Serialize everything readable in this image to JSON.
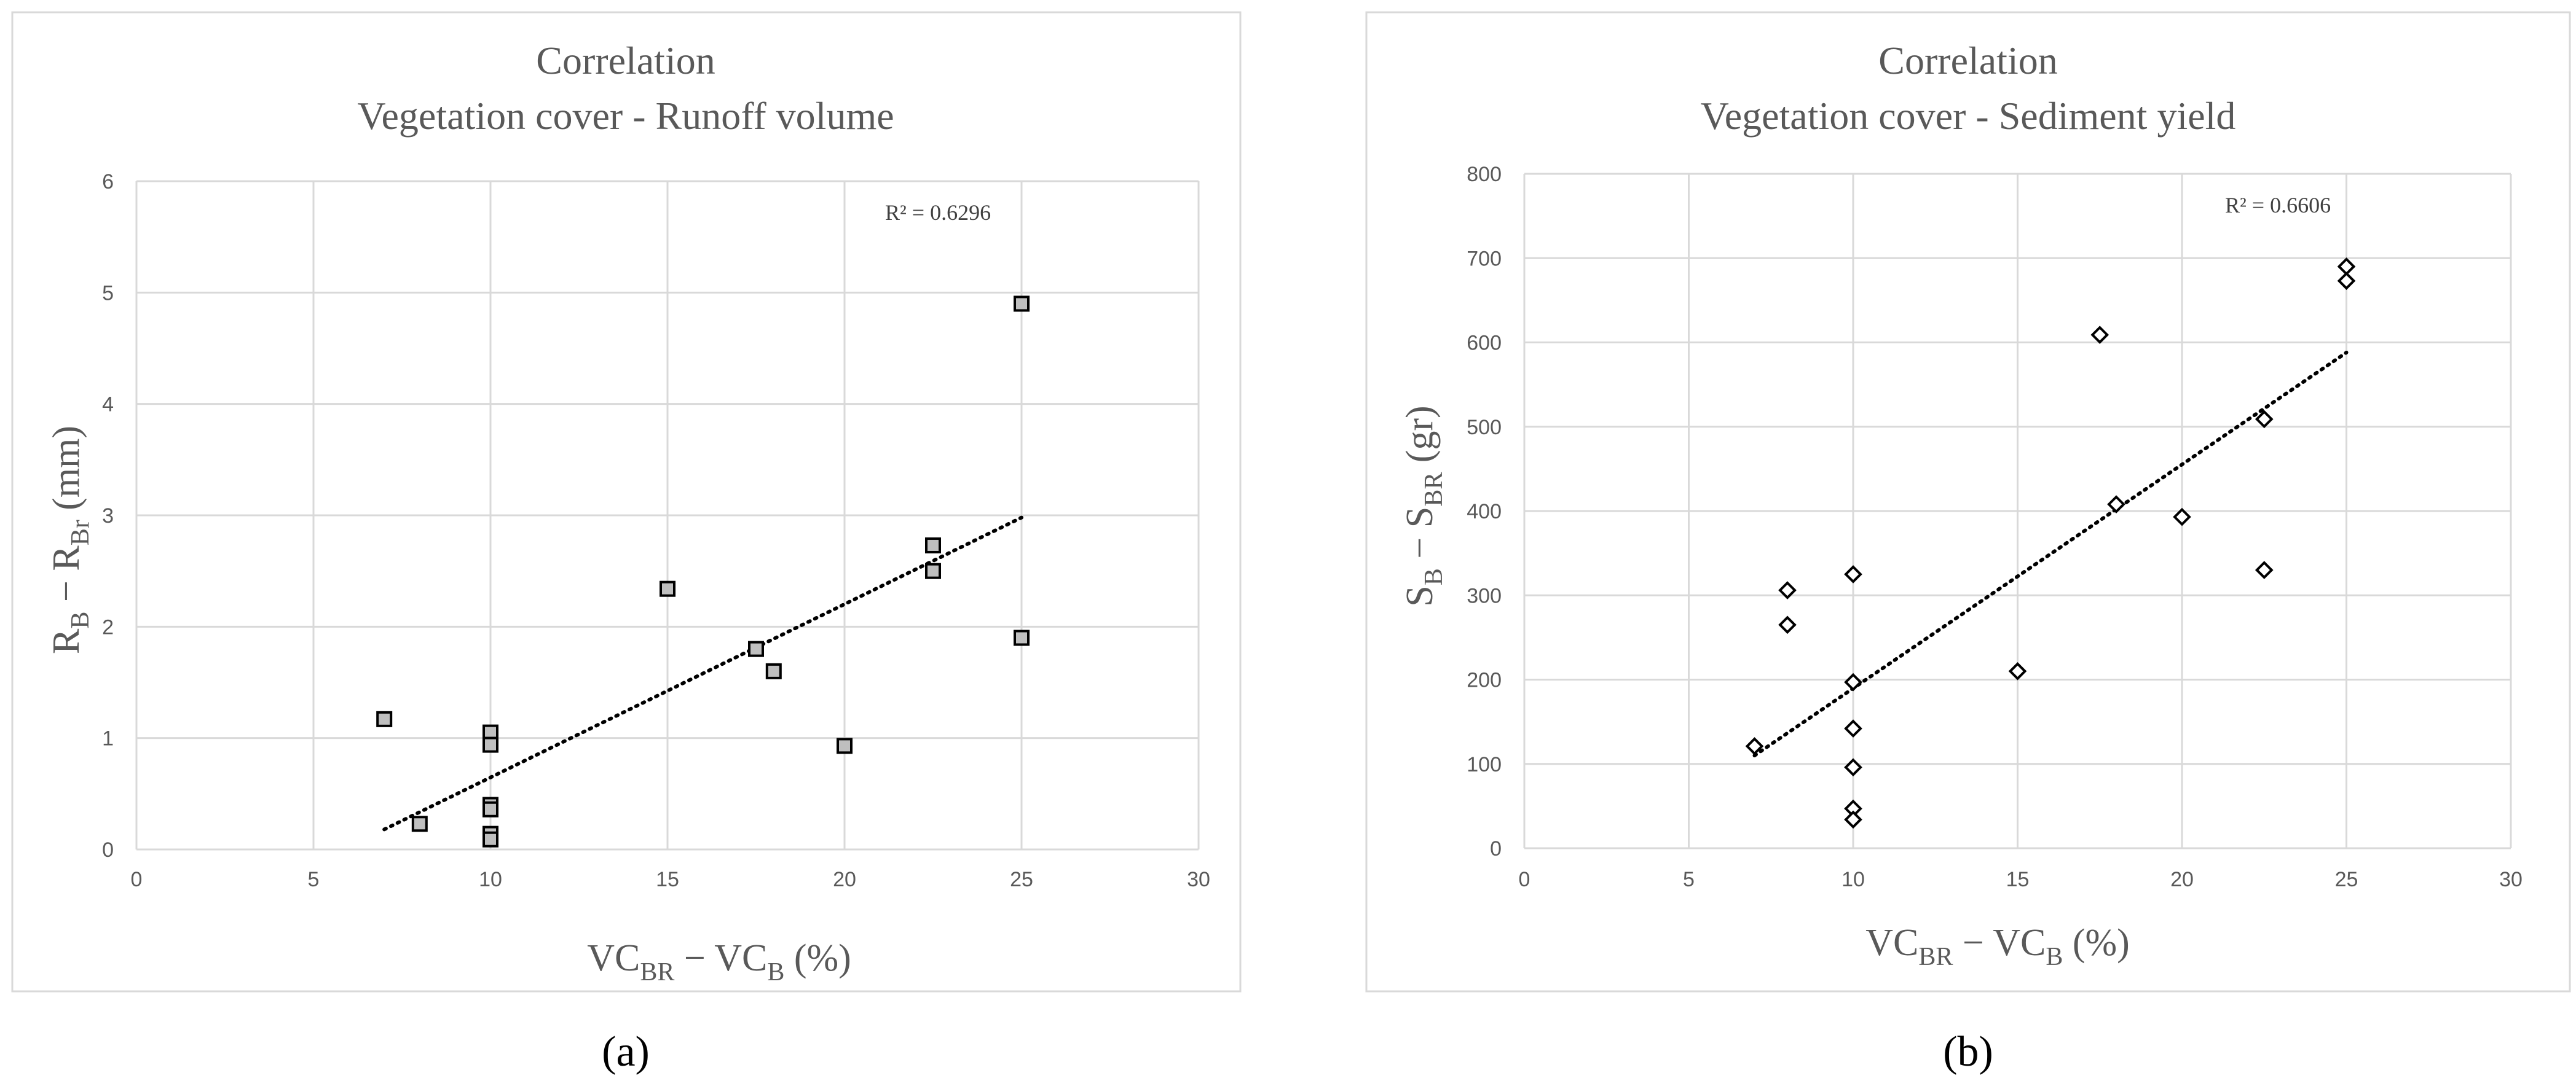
{
  "chart_data": [
    {
      "type": "scatter",
      "panel_label": "(a)",
      "title": "Correlation",
      "subtitle": "Vegetation cover - Runoff volume",
      "xlabel": {
        "main1": "VC",
        "sub1": "BR",
        "mid": " − VC",
        "sub2": "B",
        "tail": " (%)"
      },
      "ylabel": {
        "main1": "R",
        "sub1": "B",
        "mid": " − R",
        "sub2": "Br",
        "tail": " (mm)"
      },
      "xlim": [
        0,
        30
      ],
      "ylim": [
        0,
        6
      ],
      "xticks": [
        0,
        5,
        10,
        15,
        20,
        25,
        30
      ],
      "yticks": [
        0,
        1,
        2,
        3,
        4,
        5,
        6
      ],
      "marker": "square",
      "grid": true,
      "r2_label": "R² = 0.6296",
      "trendline": {
        "x1": 7,
        "y1": 0.18,
        "x2": 25,
        "y2": 2.98
      },
      "points": [
        {
          "x": 7,
          "y": 1.17
        },
        {
          "x": 8,
          "y": 0.23
        },
        {
          "x": 10,
          "y": 1.05
        },
        {
          "x": 10,
          "y": 0.94
        },
        {
          "x": 10,
          "y": 0.4
        },
        {
          "x": 10,
          "y": 0.36
        },
        {
          "x": 10,
          "y": 0.14
        },
        {
          "x": 10,
          "y": 0.09
        },
        {
          "x": 15,
          "y": 2.34
        },
        {
          "x": 17.5,
          "y": 1.8
        },
        {
          "x": 18,
          "y": 1.6
        },
        {
          "x": 20,
          "y": 0.93
        },
        {
          "x": 22.5,
          "y": 2.73
        },
        {
          "x": 22.5,
          "y": 2.5
        },
        {
          "x": 25,
          "y": 4.9
        },
        {
          "x": 25,
          "y": 1.9
        }
      ]
    },
    {
      "type": "scatter",
      "panel_label": "(b)",
      "title": "Correlation",
      "subtitle": "Vegetation cover - Sediment yield",
      "xlabel": {
        "main1": "VC",
        "sub1": "BR",
        "mid": " − VC",
        "sub2": "B",
        "tail": " (%)"
      },
      "ylabel": {
        "main1": "S",
        "sub1": "B",
        "mid": " − S",
        "sub2": "BR",
        "tail": " (gr)"
      },
      "xlim": [
        0,
        30
      ],
      "ylim": [
        0,
        800
      ],
      "xticks": [
        0,
        5,
        10,
        15,
        20,
        25,
        30
      ],
      "yticks": [
        0,
        100,
        200,
        300,
        400,
        500,
        600,
        700,
        800
      ],
      "marker": "diamond",
      "grid": true,
      "r2_label": "R² = 0.6606",
      "trendline": {
        "x1": 7,
        "y1": 110,
        "x2": 25,
        "y2": 588
      },
      "points": [
        {
          "x": 7,
          "y": 121
        },
        {
          "x": 8,
          "y": 306
        },
        {
          "x": 8,
          "y": 265
        },
        {
          "x": 10,
          "y": 325
        },
        {
          "x": 10,
          "y": 197
        },
        {
          "x": 10,
          "y": 142
        },
        {
          "x": 10,
          "y": 96
        },
        {
          "x": 10,
          "y": 47
        },
        {
          "x": 10,
          "y": 34
        },
        {
          "x": 15,
          "y": 210
        },
        {
          "x": 17.5,
          "y": 609
        },
        {
          "x": 18,
          "y": 408
        },
        {
          "x": 20,
          "y": 393
        },
        {
          "x": 22.5,
          "y": 509
        },
        {
          "x": 22.5,
          "y": 330
        },
        {
          "x": 25,
          "y": 690
        },
        {
          "x": 25,
          "y": 673
        }
      ]
    }
  ]
}
